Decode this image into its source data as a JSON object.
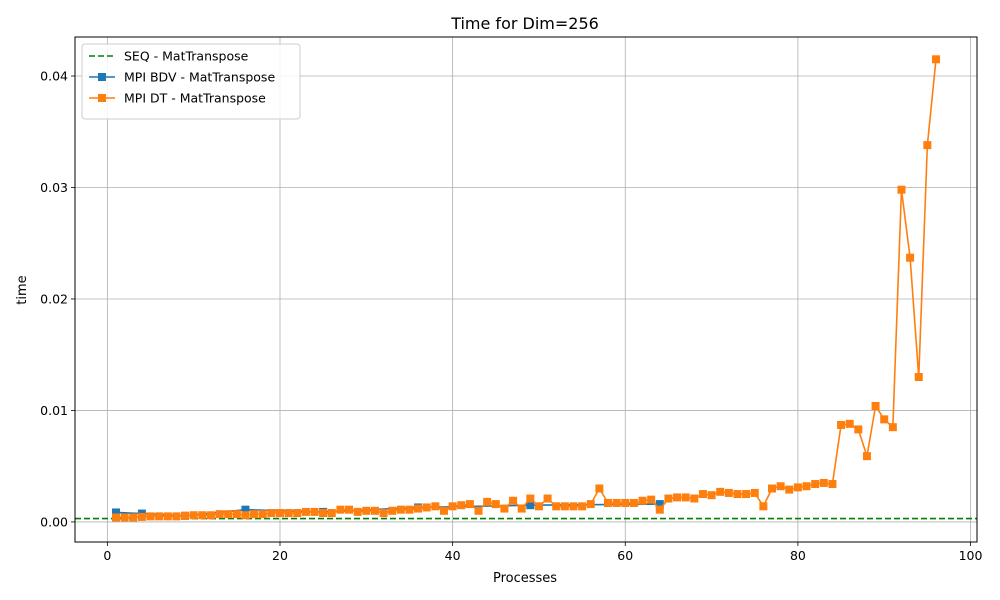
{
  "chart_data": {
    "type": "line",
    "title": "Time for Dim=256",
    "xlabel": "Processes",
    "ylabel": "time",
    "xlim": [
      -3.75,
      100.75
    ],
    "ylim": [
      -0.0018,
      0.0435
    ],
    "xticks": [
      0,
      20,
      40,
      60,
      80,
      100
    ],
    "xtick_labels": [
      "0",
      "20",
      "40",
      "60",
      "80",
      "100"
    ],
    "yticks": [
      0.0,
      0.01,
      0.02,
      0.03,
      0.04
    ],
    "ytick_labels": [
      "0.00",
      "0.01",
      "0.02",
      "0.03",
      "0.04"
    ],
    "grid": true,
    "legend_position": "top-left",
    "series": [
      {
        "name": "SEQ - MatTranspose",
        "kind": "hline",
        "y": 0.0003,
        "color": "#008000",
        "dash": true,
        "marker": "none"
      },
      {
        "name": "MPI BDV - MatTranspose",
        "color": "#1f77b4",
        "marker": "square",
        "x": [
          1,
          4,
          9,
          16,
          25,
          36,
          49,
          64
        ],
        "y": [
          0.00085,
          0.00075,
          0.00055,
          0.0011,
          0.0009,
          0.0013,
          0.0015,
          0.0016
        ]
      },
      {
        "name": "MPI DT - MatTranspose",
        "color": "#ff7f0e",
        "marker": "square",
        "x": [
          1,
          2,
          3,
          4,
          5,
          6,
          7,
          8,
          9,
          10,
          11,
          12,
          13,
          14,
          15,
          16,
          17,
          18,
          19,
          20,
          21,
          22,
          23,
          24,
          25,
          26,
          27,
          28,
          29,
          30,
          31,
          32,
          33,
          34,
          35,
          36,
          37,
          38,
          39,
          40,
          41,
          42,
          43,
          44,
          45,
          46,
          47,
          48,
          49,
          50,
          51,
          52,
          53,
          54,
          55,
          56,
          57,
          58,
          59,
          60,
          61,
          62,
          63,
          64,
          65,
          66,
          67,
          68,
          69,
          70,
          71,
          72,
          73,
          74,
          75,
          76,
          77,
          78,
          79,
          80,
          81,
          82,
          83,
          84,
          85,
          86,
          87,
          88,
          89,
          90,
          91,
          92,
          93,
          94,
          95,
          96
        ],
        "y": [
          0.0004,
          0.0004,
          0.0004,
          0.00045,
          0.0005,
          0.0005,
          0.0005,
          0.0005,
          0.00055,
          0.0006,
          0.0006,
          0.0006,
          0.0007,
          0.0007,
          0.0007,
          0.0006,
          0.0007,
          0.0007,
          0.0008,
          0.0008,
          0.0008,
          0.0008,
          0.0009,
          0.0009,
          0.0008,
          0.0008,
          0.0011,
          0.0011,
          0.0009,
          0.001,
          0.001,
          0.0008,
          0.001,
          0.0011,
          0.0011,
          0.0012,
          0.0013,
          0.0014,
          0.001,
          0.0014,
          0.0015,
          0.0016,
          0.001,
          0.0018,
          0.0016,
          0.0012,
          0.0019,
          0.0012,
          0.0021,
          0.0014,
          0.0021,
          0.0014,
          0.0014,
          0.0014,
          0.0014,
          0.0016,
          0.003,
          0.0017,
          0.0017,
          0.0017,
          0.0017,
          0.0019,
          0.002,
          0.0011,
          0.0021,
          0.0022,
          0.0022,
          0.0021,
          0.0025,
          0.0024,
          0.0027,
          0.0026,
          0.0025,
          0.0025,
          0.0026,
          0.0014,
          0.003,
          0.0032,
          0.0029,
          0.0031,
          0.0032,
          0.0034,
          0.0035,
          0.0034,
          0.0087,
          0.0088,
          0.0083,
          0.0059,
          0.0104,
          0.0092,
          0.0085,
          0.0298,
          0.0237,
          0.013,
          0.0338,
          0.0415
        ]
      }
    ]
  }
}
